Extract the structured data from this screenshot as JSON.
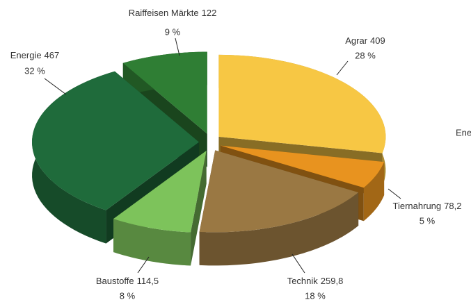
{
  "chart_data": {
    "type": "pie3d",
    "categories": [
      "Agrar",
      "Tiernahrung",
      "Technik",
      "Baustoffe",
      "Energie",
      "Raiffeisen Märkte"
    ],
    "values": [
      409,
      78.2,
      259.8,
      114.5,
      467,
      122
    ],
    "value_labels": [
      "409",
      "78,2",
      "259,8",
      "114,5",
      "467",
      "122"
    ],
    "shares": [
      28,
      5,
      18,
      8,
      32,
      9
    ],
    "share_labels": [
      "28 %",
      "5 %",
      "18 %",
      "8 %",
      "32 %",
      "9 %"
    ],
    "colors": [
      "#f7c744",
      "#e8931f",
      "#9a7843",
      "#7dc35b",
      "#1f6b3b",
      "#2f7e34"
    ],
    "annotations": [
      "Ene"
    ]
  }
}
